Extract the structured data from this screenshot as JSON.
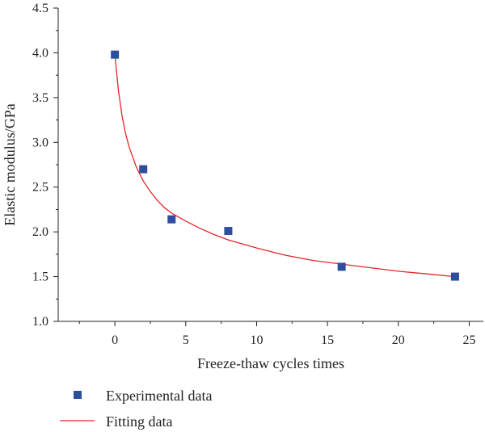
{
  "chart_data": {
    "type": "scatter",
    "title": "",
    "xlabel": "Freeze-thaw cycles times",
    "ylabel": "Elastic modulus/GPa",
    "xlim": [
      -4,
      26
    ],
    "ylim": [
      1.0,
      4.5
    ],
    "x_ticks": [
      0,
      5,
      10,
      15,
      20,
      25
    ],
    "x_tick_labels": [
      "0",
      "5",
      "10",
      "15",
      "20",
      "25"
    ],
    "y_ticks": [
      1.0,
      1.5,
      2.0,
      2.5,
      3.0,
      3.5,
      4.0,
      4.5
    ],
    "y_tick_labels": [
      "1.0",
      "1.5",
      "2.0",
      "2.5",
      "3.0",
      "3.5",
      "4.0",
      "4.5"
    ],
    "grid": false,
    "legend_position": "bottom-left, below plot",
    "series": [
      {
        "name": "Experimental data",
        "kind": "scatter",
        "marker": "square",
        "color": "#2e4f9e",
        "x": [
          0,
          2,
          4,
          8,
          16,
          24
        ],
        "y": [
          3.98,
          2.7,
          2.14,
          2.01,
          1.61,
          1.5
        ]
      },
      {
        "name": "Fitting data",
        "kind": "line",
        "color": "#e3262a",
        "x": [
          0,
          0.25,
          0.5,
          0.75,
          1,
          1.5,
          2,
          2.5,
          3,
          3.5,
          4,
          5,
          6,
          7,
          8,
          10,
          12,
          14,
          16,
          18,
          20,
          22,
          24
        ],
        "y": [
          3.98,
          3.58,
          3.3,
          3.1,
          2.95,
          2.73,
          2.57,
          2.45,
          2.35,
          2.27,
          2.21,
          2.12,
          2.04,
          1.97,
          1.91,
          1.82,
          1.74,
          1.68,
          1.64,
          1.6,
          1.56,
          1.53,
          1.5
        ]
      }
    ]
  }
}
